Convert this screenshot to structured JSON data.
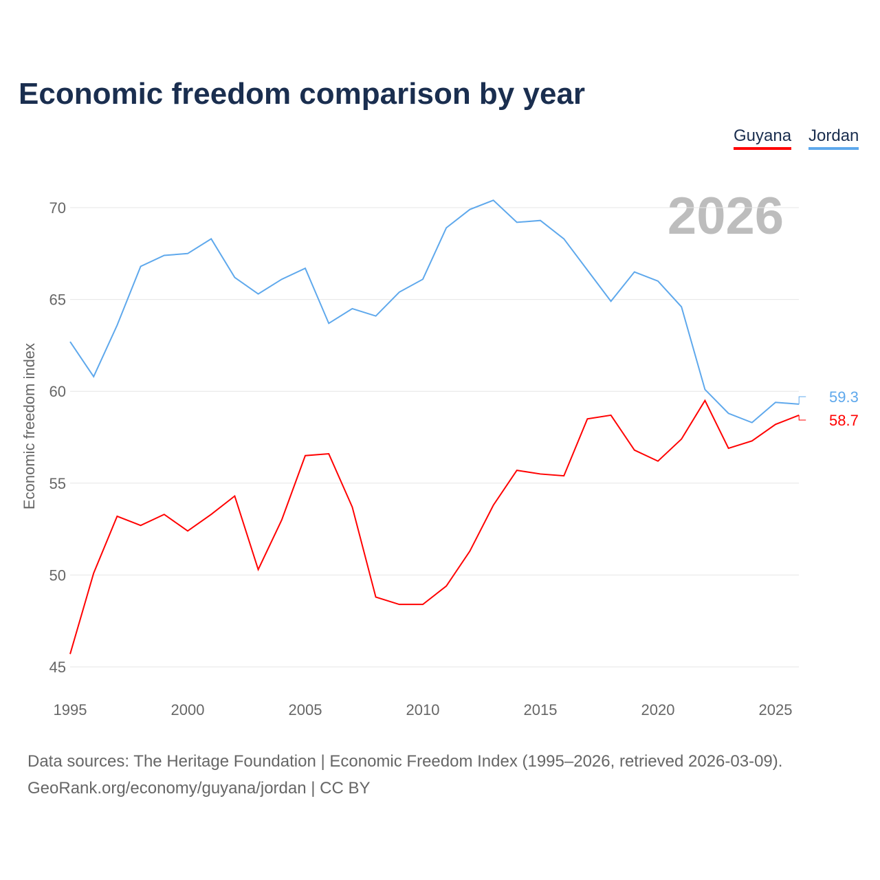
{
  "title": "Economic freedom comparison by year",
  "legend": [
    {
      "label": "Guyana",
      "color": "#ff0000"
    },
    {
      "label": "Jordan",
      "color": "#5ea8ec"
    }
  ],
  "year_watermark": "2026",
  "footer": {
    "line1": "Data sources: The Heritage Foundation | Economic Freedom Index (1995–2026, retrieved 2026-03-09).",
    "line2": "GeoRank.org/economy/guyana/jordan | CC BY"
  },
  "chart_data": {
    "type": "line",
    "title": "Economic freedom comparison by year",
    "xlabel": "",
    "ylabel": "Economic freedom index",
    "xlim": [
      1995,
      2026
    ],
    "ylim": [
      45,
      71
    ],
    "yticks": [
      45,
      50,
      55,
      60,
      65,
      70
    ],
    "xticks": [
      1995,
      2000,
      2005,
      2010,
      2015,
      2020,
      2025
    ],
    "grid": true,
    "legend_position": "top-right",
    "x": [
      1995,
      1996,
      1997,
      1998,
      1999,
      2000,
      2001,
      2002,
      2003,
      2004,
      2005,
      2006,
      2007,
      2008,
      2009,
      2010,
      2011,
      2012,
      2013,
      2014,
      2015,
      2016,
      2017,
      2018,
      2019,
      2020,
      2021,
      2022,
      2023,
      2024,
      2025,
      2026
    ],
    "series": [
      {
        "name": "Guyana",
        "color": "#ff0000",
        "end_label": "58.7",
        "values": [
          45.7,
          50.1,
          53.2,
          52.7,
          53.3,
          52.4,
          53.3,
          54.3,
          50.3,
          53.0,
          56.5,
          56.6,
          53.7,
          48.8,
          48.4,
          48.4,
          49.4,
          51.3,
          53.8,
          55.7,
          55.5,
          55.4,
          58.5,
          58.7,
          56.8,
          56.2,
          57.4,
          59.5,
          56.9,
          57.3,
          58.2,
          58.7
        ]
      },
      {
        "name": "Jordan",
        "color": "#5ea8ec",
        "end_label": "59.3",
        "values": [
          62.7,
          60.8,
          63.6,
          66.8,
          67.4,
          67.5,
          68.3,
          66.2,
          65.3,
          66.1,
          66.7,
          63.7,
          64.5,
          64.1,
          65.4,
          66.1,
          68.9,
          69.9,
          70.4,
          69.2,
          69.3,
          68.3,
          66.6,
          64.9,
          66.5,
          66.0,
          64.6,
          60.1,
          58.8,
          58.3,
          59.4,
          59.3
        ]
      }
    ]
  }
}
